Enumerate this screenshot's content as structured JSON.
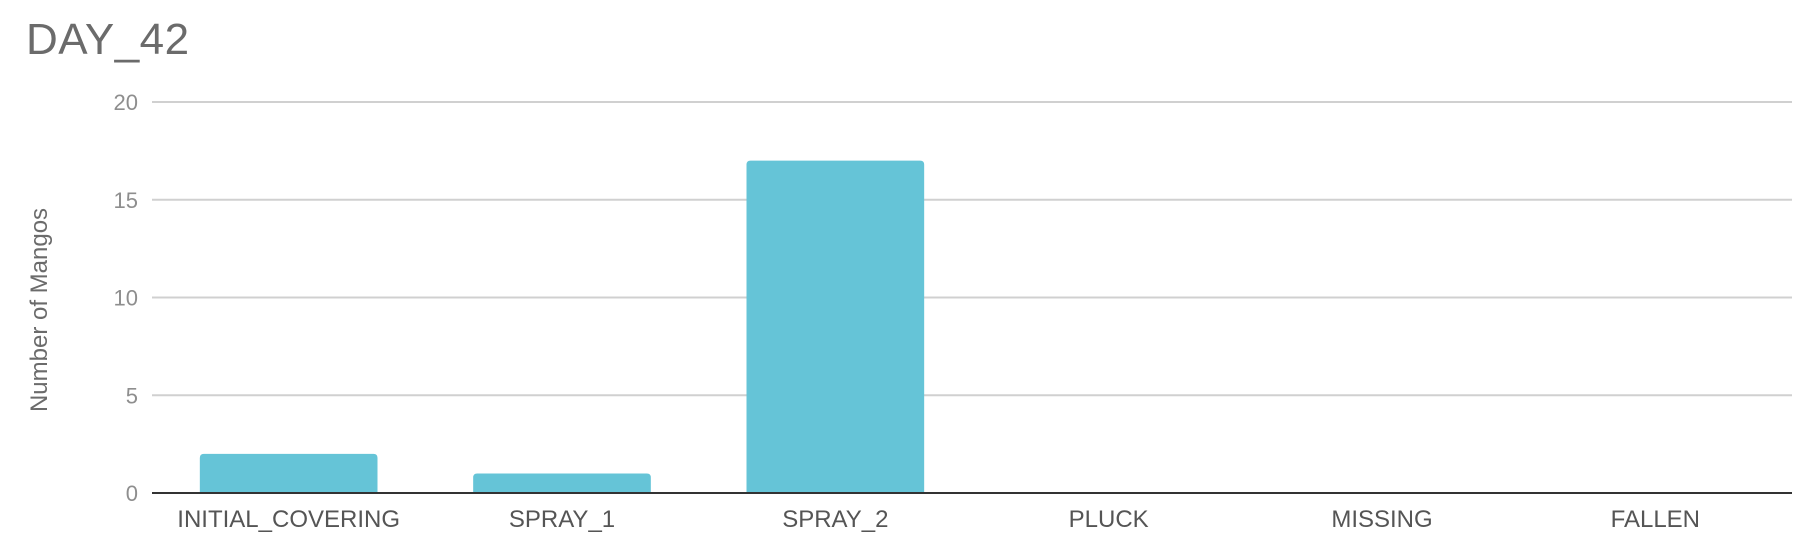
{
  "chart_data": {
    "type": "bar",
    "title": "DAY_42",
    "xlabel": "",
    "ylabel": "Number of Mangos",
    "categories": [
      "INITIAL_COVERING",
      "SPRAY_1",
      "SPRAY_2",
      "PLUCK",
      "MISSING",
      "FALLEN"
    ],
    "values": [
      2,
      1,
      17,
      0,
      0,
      0
    ],
    "ylim": [
      0,
      20
    ],
    "yticks": [
      0,
      5,
      10,
      15,
      20
    ],
    "grid": true,
    "legend": "none",
    "bar_color": "#65C4D7"
  }
}
